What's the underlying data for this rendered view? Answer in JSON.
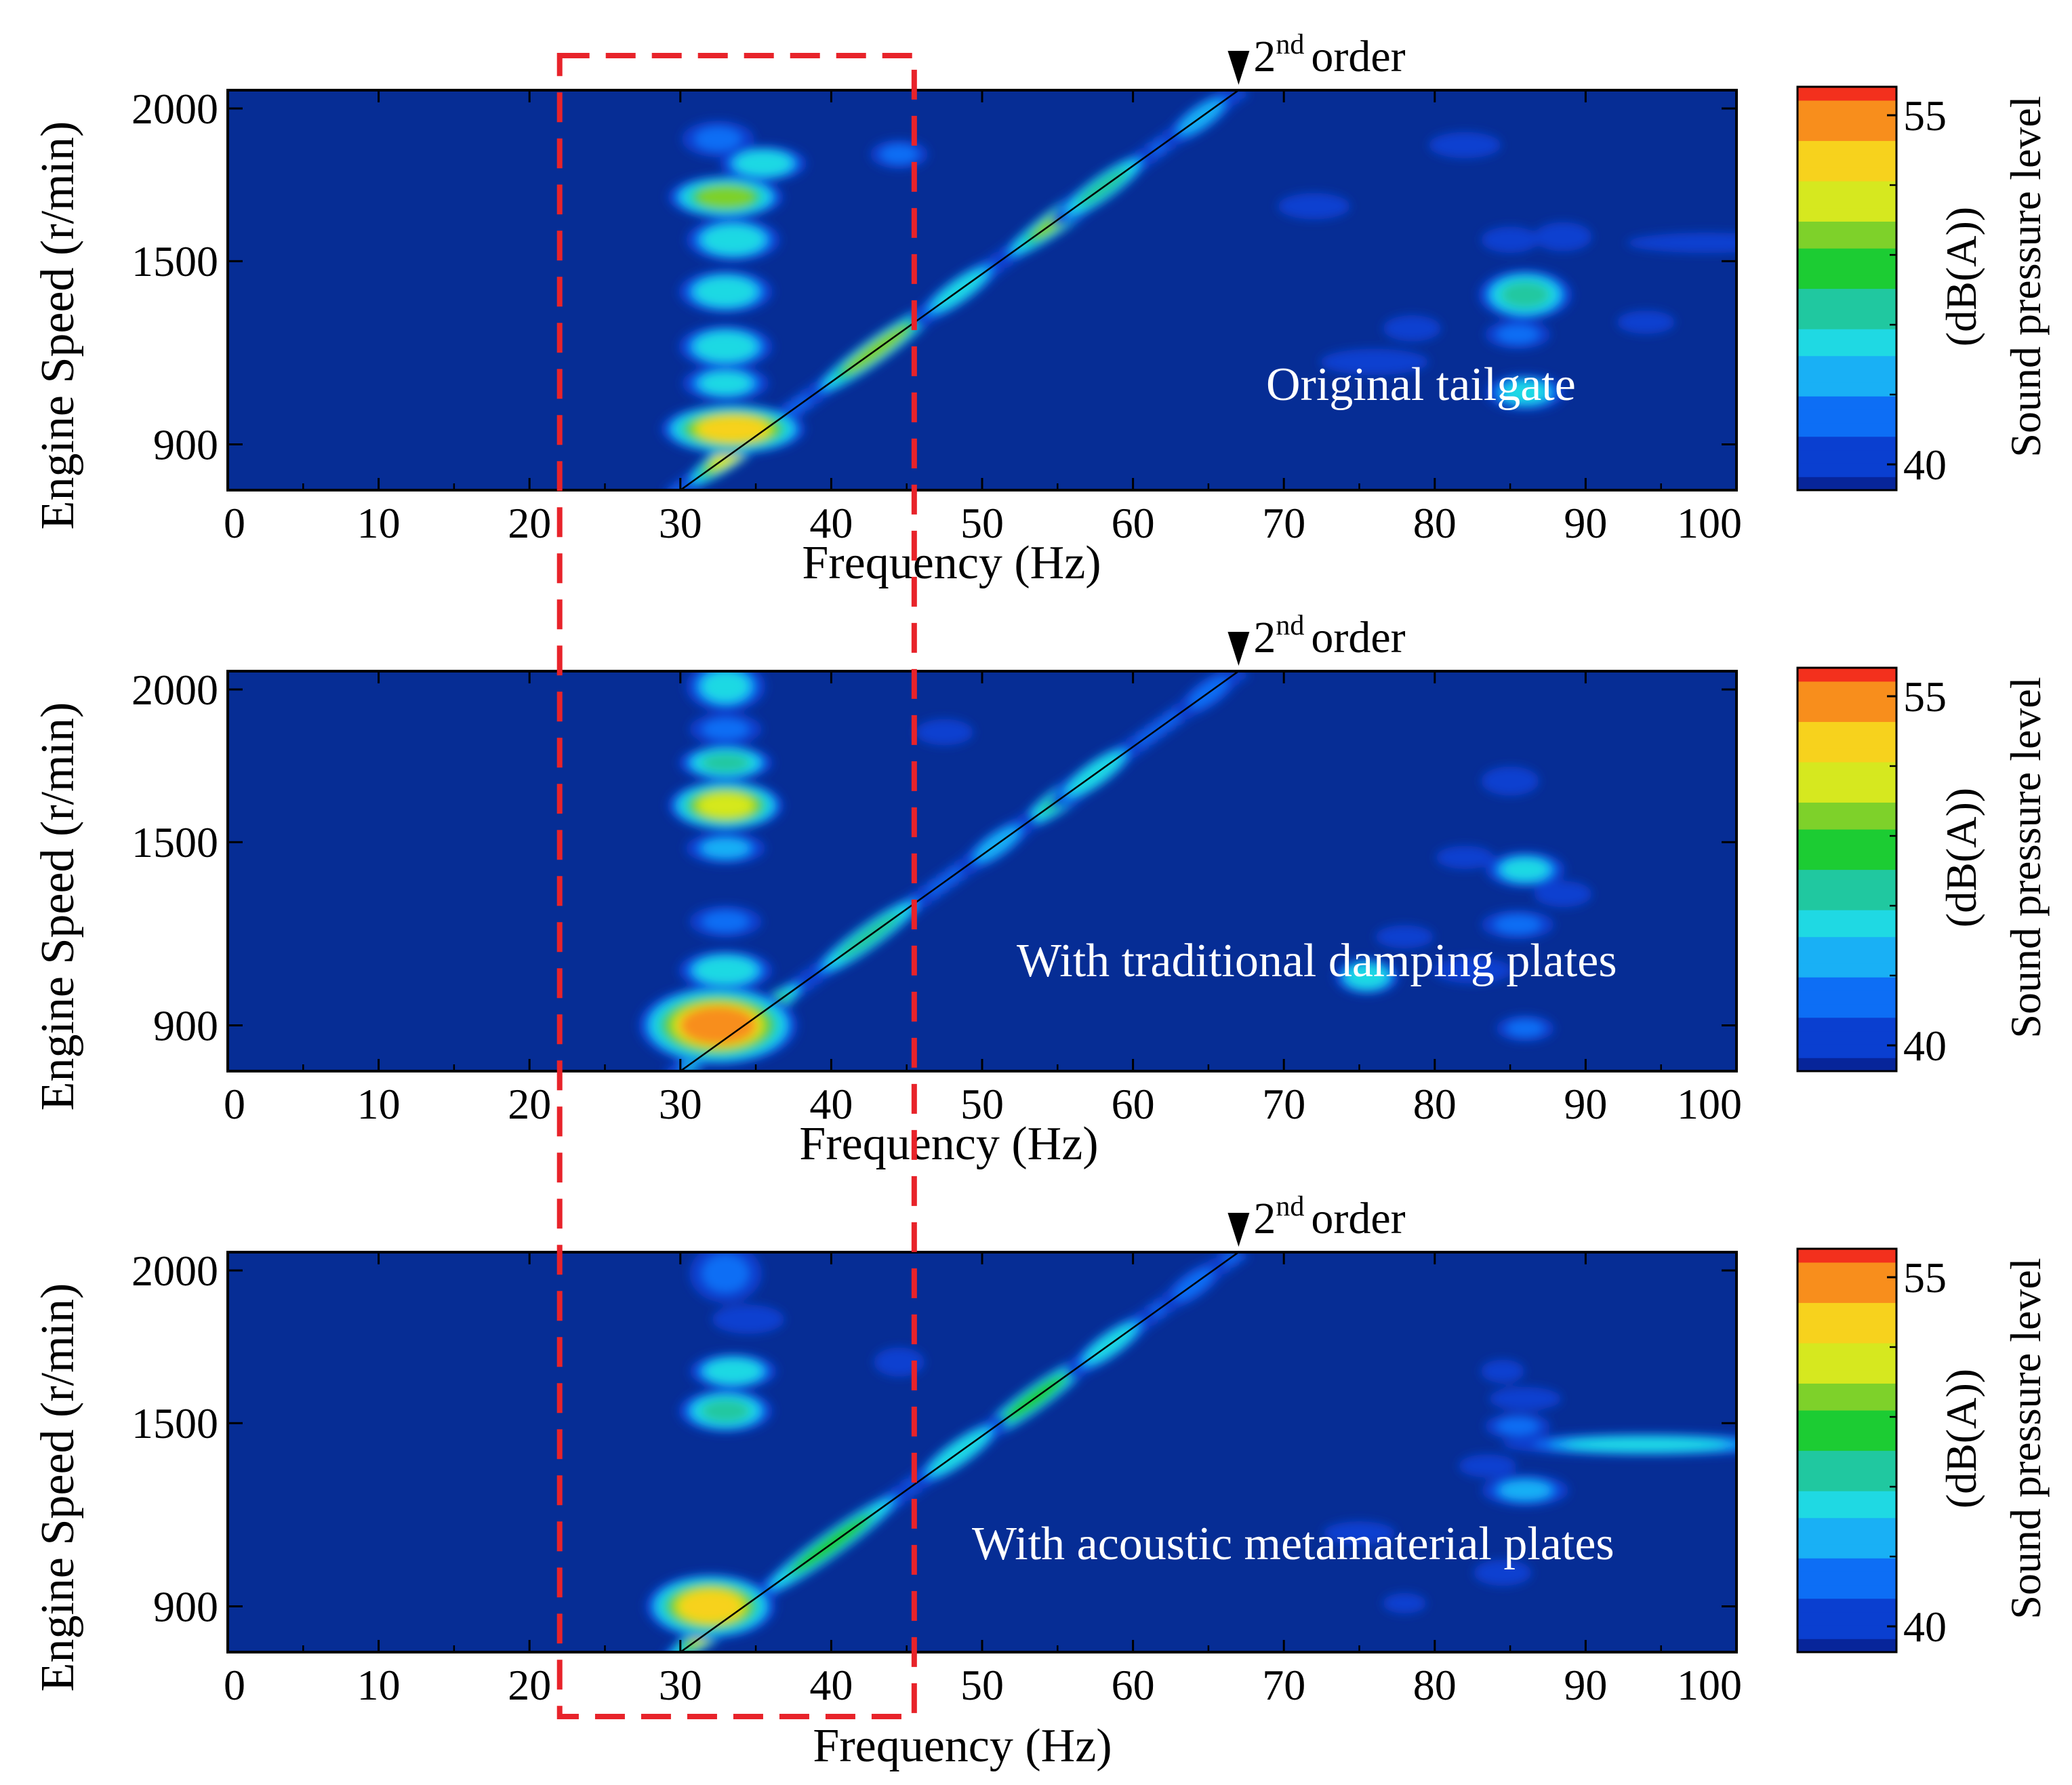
{
  "chart_data": [
    {
      "type": "heatmap",
      "annotation": "Original tailgate",
      "order_label": "2",
      "order_sup": "nd",
      "order_text": "order",
      "xlabel": "Frequency (Hz)",
      "ylabel": "Engine Speed (r/min)",
      "xlim": [
        0,
        100
      ],
      "ylim": [
        750,
        2060
      ],
      "x_ticks": [
        0,
        10,
        20,
        30,
        40,
        50,
        60,
        70,
        80,
        90,
        100
      ],
      "y_ticks": [
        900,
        1500,
        2000
      ],
      "colorbar": {
        "label": "Sound pressure level",
        "unit": "(dB(A))",
        "min": 40,
        "max": 55,
        "ticks": [
          40,
          55
        ]
      },
      "order_line": {
        "from": [
          30,
          750
        ],
        "to": [
          67,
          2060
        ]
      },
      "hotspots": [
        {
          "x": 33,
          "y": 1710,
          "v": 49,
          "rx": 1.6,
          "ry": 30
        },
        {
          "x": 33.5,
          "y": 1570,
          "v": 46,
          "rx": 1.3,
          "ry": 30
        },
        {
          "x": 33,
          "y": 1400,
          "v": 46,
          "rx": 1.3,
          "ry": 30
        },
        {
          "x": 33,
          "y": 1220,
          "v": 46,
          "rx": 1.3,
          "ry": 30
        },
        {
          "x": 33,
          "y": 1100,
          "v": 45,
          "rx": 1.2,
          "ry": 25
        },
        {
          "x": 33.5,
          "y": 950,
          "v": 52,
          "rx": 2.0,
          "ry": 35
        },
        {
          "x": 32.5,
          "y": 1900,
          "v": 43,
          "rx": 1.0,
          "ry": 25
        },
        {
          "x": 35.5,
          "y": 1820,
          "v": 46,
          "rx": 1.2,
          "ry": 25
        },
        {
          "x": 44.5,
          "y": 1850,
          "v": 43,
          "rx": 0.8,
          "ry": 20
        },
        {
          "x": 86,
          "y": 1390,
          "v": 47,
          "rx": 1.3,
          "ry": 35
        },
        {
          "x": 86,
          "y": 1070,
          "v": 45,
          "rx": 1.1,
          "ry": 25
        },
        {
          "x": 85.5,
          "y": 1260,
          "v": 43,
          "rx": 0.9,
          "ry": 20
        },
        {
          "x": 98,
          "y": 1560,
          "v": 42,
          "rx": 2.2,
          "ry": 14
        },
        {
          "x": 88.5,
          "y": 1580,
          "v": 42,
          "rx": 0.8,
          "ry": 20
        },
        {
          "x": 85,
          "y": 1570,
          "v": 41,
          "rx": 0.8,
          "ry": 18
        },
        {
          "x": 76,
          "y": 1170,
          "v": 42,
          "rx": 1.5,
          "ry": 18
        },
        {
          "x": 72,
          "y": 1680,
          "v": 41,
          "rx": 1.0,
          "ry": 18
        },
        {
          "x": 78.5,
          "y": 1280,
          "v": 41,
          "rx": 0.8,
          "ry": 18
        },
        {
          "x": 82,
          "y": 1880,
          "v": 41,
          "rx": 1.0,
          "ry": 18
        },
        {
          "x": 94,
          "y": 1300,
          "v": 41,
          "rx": 0.8,
          "ry": 16
        }
      ],
      "line_hotspots": [
        {
          "x": 33.5,
          "v": 51,
          "r": 1.6
        },
        {
          "x": 43,
          "v": 49,
          "r": 2.2
        },
        {
          "x": 55.5,
          "v": 49,
          "r": 2.2
        },
        {
          "x": 58,
          "v": 47,
          "r": 1.6
        },
        {
          "x": 48.5,
          "v": 45,
          "r": 1.5
        },
        {
          "x": 64.5,
          "v": 44,
          "r": 1.2
        }
      ]
    },
    {
      "type": "heatmap",
      "annotation": "With traditional damping plates",
      "order_label": "2",
      "order_sup": "nd",
      "order_text": "order",
      "xlabel": "Frequency (Hz)",
      "ylabel": "Engine Speed (r/min)",
      "xlim": [
        0,
        100
      ],
      "ylim": [
        750,
        2060
      ],
      "x_ticks": [
        0,
        10,
        20,
        30,
        40,
        50,
        60,
        70,
        80,
        90,
        100
      ],
      "y_ticks": [
        900,
        1500,
        2000
      ],
      "colorbar": {
        "label": "Sound pressure level",
        "unit": "(dB(A))",
        "min": 40,
        "max": 55,
        "ticks": [
          40,
          55
        ]
      },
      "order_line": {
        "from": [
          30,
          750
        ],
        "to": [
          67,
          2060
        ]
      },
      "hotspots": [
        {
          "x": 33,
          "y": 1620,
          "v": 51,
          "rx": 1.6,
          "ry": 35
        },
        {
          "x": 33,
          "y": 1760,
          "v": 47,
          "rx": 1.3,
          "ry": 25
        },
        {
          "x": 33,
          "y": 2010,
          "v": 45,
          "rx": 1.1,
          "ry": 35
        },
        {
          "x": 33,
          "y": 1870,
          "v": 43,
          "rx": 1.0,
          "ry": 22
        },
        {
          "x": 33,
          "y": 1480,
          "v": 44,
          "rx": 1.1,
          "ry": 22
        },
        {
          "x": 33,
          "y": 1240,
          "v": 43,
          "rx": 1.0,
          "ry": 22
        },
        {
          "x": 33,
          "y": 1080,
          "v": 46,
          "rx": 1.3,
          "ry": 28
        },
        {
          "x": 32.5,
          "y": 900,
          "v": 53,
          "rx": 2.2,
          "ry": 55
        },
        {
          "x": 86,
          "y": 1410,
          "v": 45,
          "rx": 1.1,
          "ry": 25
        },
        {
          "x": 75.5,
          "y": 1060,
          "v": 46,
          "rx": 0.9,
          "ry": 25
        },
        {
          "x": 85.5,
          "y": 1230,
          "v": 43,
          "rx": 1.0,
          "ry": 20
        },
        {
          "x": 86,
          "y": 890,
          "v": 43,
          "rx": 0.8,
          "ry": 18
        },
        {
          "x": 82.5,
          "y": 1080,
          "v": 42,
          "rx": 1.1,
          "ry": 18
        },
        {
          "x": 85,
          "y": 1700,
          "v": 42,
          "rx": 0.8,
          "ry": 20
        },
        {
          "x": 47.5,
          "y": 1860,
          "v": 42,
          "rx": 0.8,
          "ry": 18
        },
        {
          "x": 88.5,
          "y": 1330,
          "v": 41,
          "rx": 0.8,
          "ry": 18
        },
        {
          "x": 78,
          "y": 1190,
          "v": 41,
          "rx": 0.8,
          "ry": 16
        },
        {
          "x": 82,
          "y": 1450,
          "v": 41,
          "rx": 0.8,
          "ry": 16
        }
      ],
      "line_hotspots": [
        {
          "x": 34,
          "v": 52,
          "r": 2.2
        },
        {
          "x": 42.5,
          "v": 47,
          "r": 2.0
        },
        {
          "x": 55.5,
          "v": 47,
          "r": 1.6
        },
        {
          "x": 57.5,
          "v": 46,
          "r": 1.4
        },
        {
          "x": 51,
          "v": 44,
          "r": 1.2
        },
        {
          "x": 65,
          "v": 43,
          "r": 1.0
        }
      ]
    },
    {
      "type": "heatmap",
      "annotation": "With acoustic metamaterial plates",
      "order_label": "2",
      "order_sup": "nd",
      "order_text": "order",
      "xlabel": "Frequency (Hz)",
      "ylabel": "Engine Speed (r/min)",
      "xlim": [
        0,
        100
      ],
      "ylim": [
        750,
        2060
      ],
      "x_ticks": [
        0,
        10,
        20,
        30,
        40,
        50,
        60,
        70,
        80,
        90,
        100
      ],
      "y_ticks": [
        900,
        1500,
        2000
      ],
      "colorbar": {
        "label": "Sound pressure level",
        "unit": "(dB(A))",
        "min": 40,
        "max": 55,
        "ticks": [
          40,
          55
        ]
      },
      "order_line": {
        "from": [
          30,
          750
        ],
        "to": [
          67,
          2060
        ]
      },
      "hotspots": [
        {
          "x": 33,
          "y": 1540,
          "v": 47,
          "rx": 1.3,
          "ry": 30
        },
        {
          "x": 33.5,
          "y": 1670,
          "v": 46,
          "rx": 1.2,
          "ry": 25
        },
        {
          "x": 33,
          "y": 1990,
          "v": 43,
          "rx": 1.0,
          "ry": 40
        },
        {
          "x": 34.5,
          "y": 1840,
          "v": 42,
          "rx": 1.0,
          "ry": 20
        },
        {
          "x": 44.5,
          "y": 1700,
          "v": 42,
          "rx": 0.7,
          "ry": 20
        },
        {
          "x": 32,
          "y": 900,
          "v": 52,
          "rx": 1.8,
          "ry": 45
        },
        {
          "x": 94,
          "y": 1430,
          "v": 45,
          "rx": 4.0,
          "ry": 16
        },
        {
          "x": 86,
          "y": 1280,
          "v": 44,
          "rx": 1.2,
          "ry": 22
        },
        {
          "x": 85.5,
          "y": 1490,
          "v": 43,
          "rx": 0.9,
          "ry": 18
        },
        {
          "x": 86,
          "y": 1580,
          "v": 42,
          "rx": 1.0,
          "ry": 16
        },
        {
          "x": 83.5,
          "y": 1360,
          "v": 42,
          "rx": 0.8,
          "ry": 16
        },
        {
          "x": 84.5,
          "y": 1010,
          "v": 42,
          "rx": 0.8,
          "ry": 18
        },
        {
          "x": 84.5,
          "y": 1670,
          "v": 41,
          "rx": 0.6,
          "ry": 16
        },
        {
          "x": 75,
          "y": 1140,
          "v": 41,
          "rx": 1.0,
          "ry": 16
        },
        {
          "x": 78,
          "y": 910,
          "v": 41,
          "rx": 0.6,
          "ry": 14
        }
      ],
      "line_hotspots": [
        {
          "x": 32.5,
          "v": 51,
          "r": 1.8
        },
        {
          "x": 40,
          "v": 48,
          "r": 2.6
        },
        {
          "x": 53.5,
          "v": 48,
          "r": 2.0
        },
        {
          "x": 48.5,
          "v": 46,
          "r": 1.5
        },
        {
          "x": 58.5,
          "v": 45,
          "r": 1.4
        },
        {
          "x": 64,
          "v": 43,
          "r": 1.0
        }
      ]
    }
  ],
  "highlight_box": {
    "x_from": 22,
    "x_to": 45.5,
    "color": "#e8232a",
    "style": "dashed"
  },
  "colors": {
    "background": "#062d95",
    "colormap": [
      "#07259a",
      "#0a3fd0",
      "#0d6ef5",
      "#19b0f5",
      "#1fd9e3",
      "#20c8a0",
      "#1ccc33",
      "#7ed12a",
      "#d6e81f",
      "#f7d21d",
      "#f88e1c",
      "#f3301d"
    ]
  }
}
